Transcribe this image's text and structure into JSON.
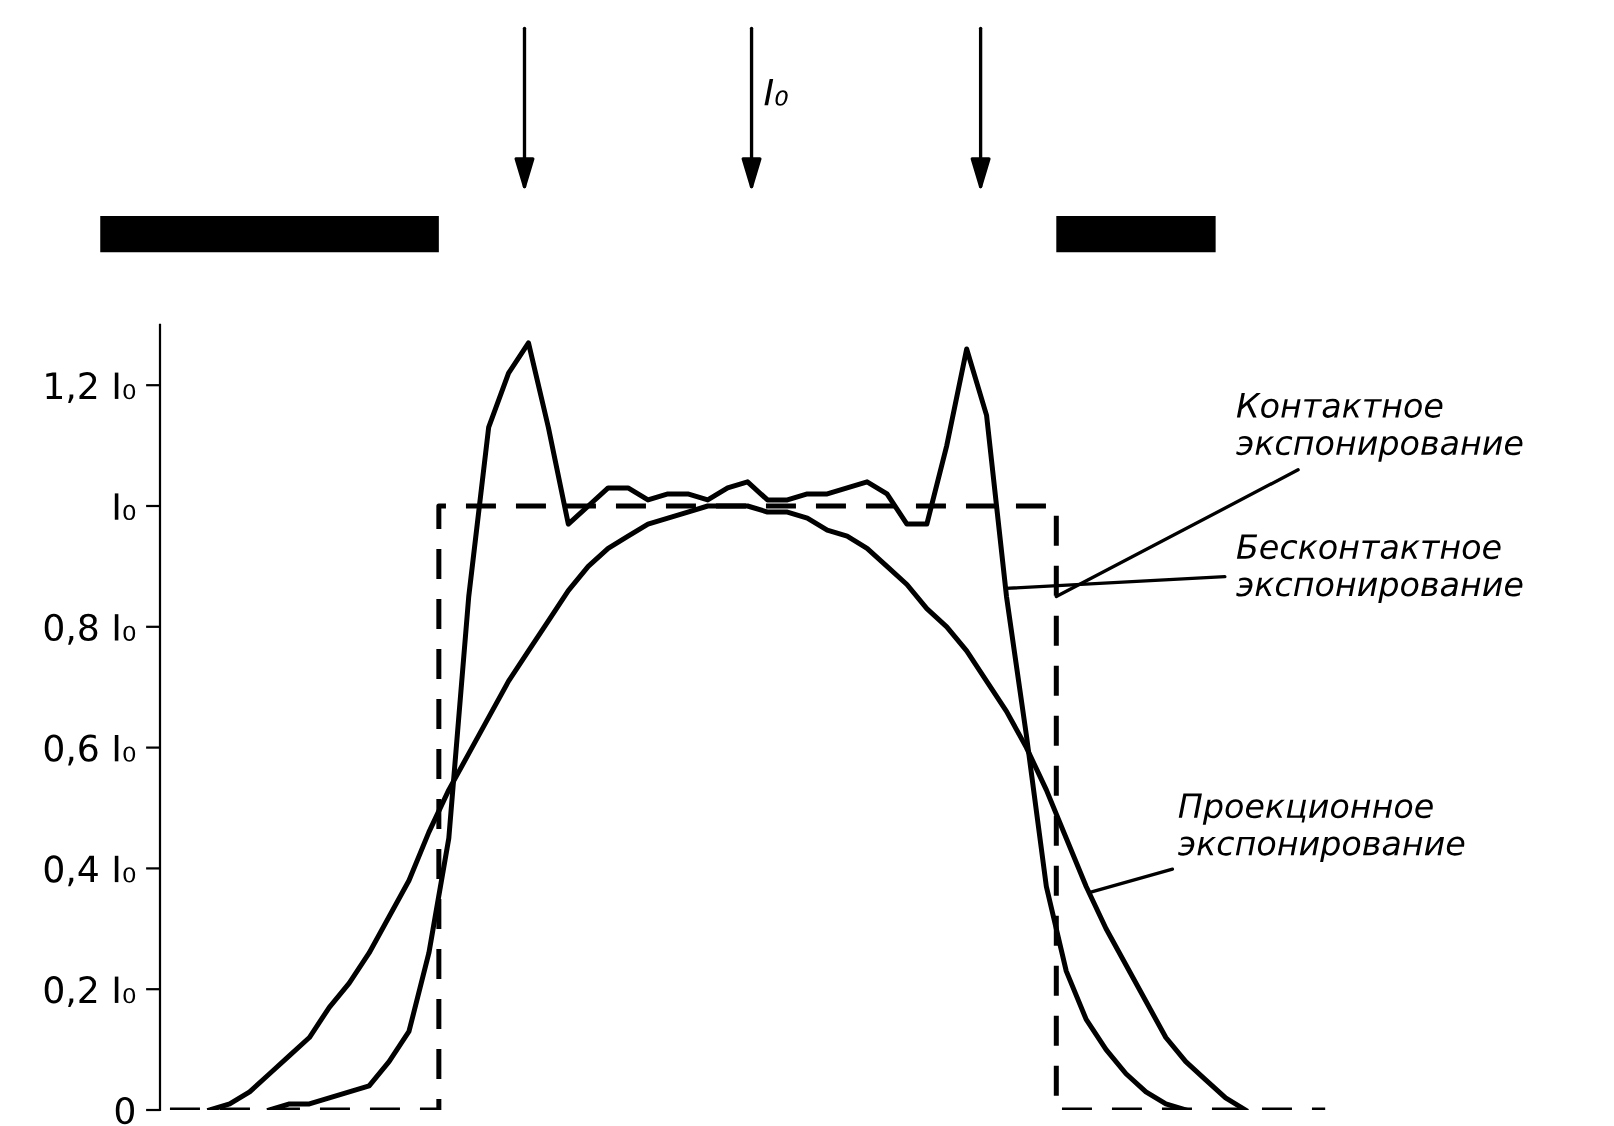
{
  "chart_data": {
    "type": "line",
    "tick_labels": "y",
    "grid": false,
    "legend": false,
    "marker": "none",
    "categories": [
      null,
      null,
      null,
      null,
      null,
      null,
      null,
      null,
      null,
      null,
      null,
      null,
      null,
      null,
      null,
      null,
      null,
      null,
      null,
      null,
      null,
      null,
      null,
      null,
      null,
      null,
      null,
      null,
      null,
      null,
      null,
      null,
      null,
      null,
      null,
      null,
      null,
      null,
      null,
      null,
      null,
      null,
      null,
      null,
      null,
      null,
      null,
      null,
      null,
      null,
      null,
      null,
      null,
      null,
      null,
      null,
      null,
      null,
      null
    ],
    "ylim": [
      0,
      1.3
    ],
    "yticks": [
      {
        "value": 0,
        "label": "0"
      },
      {
        "value": 0.2,
        "label": "0,2 I₀"
      },
      {
        "value": 0.4,
        "label": "0,4 I₀"
      },
      {
        "value": 0.6,
        "label": "0,6 I₀"
      },
      {
        "value": 0.8,
        "label": "0,8 I₀"
      },
      {
        "value": 1.0,
        "label": "I₀"
      },
      {
        "value": 1.2,
        "label": "1,2 I₀"
      }
    ],
    "annotations": [
      "I₀"
    ],
    "series": [
      {
        "name": "Контактное\nэкспонирование",
        "type": "step",
        "color": "#000000",
        "line_style": "dashed",
        "values": [
          0,
          0,
          0,
          0,
          0,
          0,
          0,
          0,
          0,
          0,
          0,
          0,
          0,
          0,
          1.0,
          1.0,
          1.0,
          1.0,
          1.0,
          1.0,
          1.0,
          1.0,
          1.0,
          1.0,
          1.0,
          1.0,
          1.0,
          1.0,
          1.0,
          1.0,
          1.0,
          1.0,
          1.0,
          1.0,
          1.0,
          1.0,
          1.0,
          1.0,
          1.0,
          1.0,
          1.0,
          1.0,
          1.0,
          1.0,
          1.0,
          0,
          0,
          0,
          0,
          0,
          0,
          0,
          0,
          0,
          0,
          0,
          0,
          0,
          0
        ]
      },
      {
        "name": "Бесконтактное\nэкспонирование",
        "color": "#000000",
        "line_style": "solid",
        "values": [
          null,
          null,
          null,
          null,
          null,
          0,
          0.01,
          0.01,
          0.02,
          0.03,
          0.04,
          0.08,
          0.13,
          0.26,
          0.45,
          0.85,
          1.13,
          1.22,
          1.27,
          1.13,
          0.97,
          1.0,
          1.03,
          1.03,
          1.01,
          1.02,
          1.02,
          1.01,
          1.03,
          1.04,
          1.01,
          1.01,
          1.02,
          1.02,
          1.03,
          1.04,
          1.02,
          0.97,
          0.97,
          1.1,
          1.26,
          1.15,
          0.85,
          0.62,
          0.37,
          0.23,
          0.15,
          0.1,
          0.06,
          0.03,
          0.01,
          0,
          null,
          null,
          null,
          null,
          null,
          null,
          null
        ]
      },
      {
        "name": "Проекционное\nэкспонирование",
        "color": "#000000",
        "line_style": "solid",
        "values": [
          null,
          null,
          0,
          0.01,
          0.03,
          0.06,
          0.09,
          0.12,
          0.17,
          0.21,
          0.26,
          0.32,
          0.38,
          0.46,
          0.53,
          0.59,
          0.65,
          0.71,
          0.76,
          0.81,
          0.86,
          0.9,
          0.93,
          0.95,
          0.97,
          0.98,
          0.99,
          1.0,
          1.0,
          1.0,
          0.99,
          0.99,
          0.98,
          0.96,
          0.95,
          0.93,
          0.9,
          0.87,
          0.83,
          0.8,
          0.76,
          0.71,
          0.66,
          0.6,
          0.53,
          0.45,
          0.37,
          0.3,
          0.24,
          0.18,
          0.12,
          0.08,
          0.05,
          0.02,
          0,
          null,
          null,
          null,
          null
        ]
      }
    ]
  }
}
